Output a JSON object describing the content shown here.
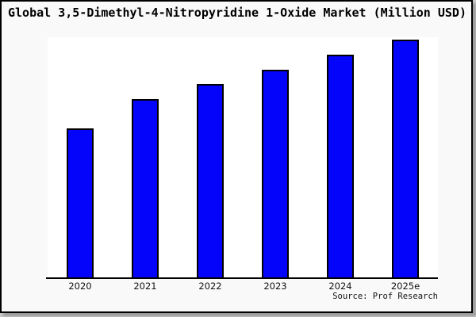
{
  "window": {
    "title": "Global 3,5-Dimethyl-4-Nitropyridine 1-Oxide Market (Million USD)"
  },
  "footer": {
    "source_label": "Source: Prof Research"
  },
  "colors": {
    "bar_fill": "#0404fa",
    "bar_edge": "#000000",
    "figure_bg": "#f9f9f9",
    "plot_bg": "#ffffff",
    "axis_line": "#000000",
    "frame_border": "#000000",
    "frame_shadow": "#9a9a9a",
    "title_text": "#000000",
    "tick_text": "#111111"
  },
  "chart_data": {
    "type": "bar",
    "title": "Global 3,5-Dimethyl-4-Nitropyridine 1-Oxide Market (Million USD)",
    "categories": [
      "2020",
      "2021",
      "2022",
      "2023",
      "2024",
      "2025e"
    ],
    "values": [
      62.7,
      75.0,
      81.3,
      87.3,
      93.7,
      100.0
    ],
    "values_note": "relative market size index estimated from bar heights, 2025e = 100; no y-axis tick labels are shown in the chart",
    "bar_heights_pct_of_plot": [
      62.0,
      74.3,
      80.5,
      86.5,
      92.7,
      99.0
    ],
    "xlabel": "",
    "ylabel": "",
    "ylim": [
      0,
      100
    ],
    "grid": false,
    "legend": false,
    "y_axis_ticks_visible": false,
    "source": "Source: Prof Research"
  }
}
